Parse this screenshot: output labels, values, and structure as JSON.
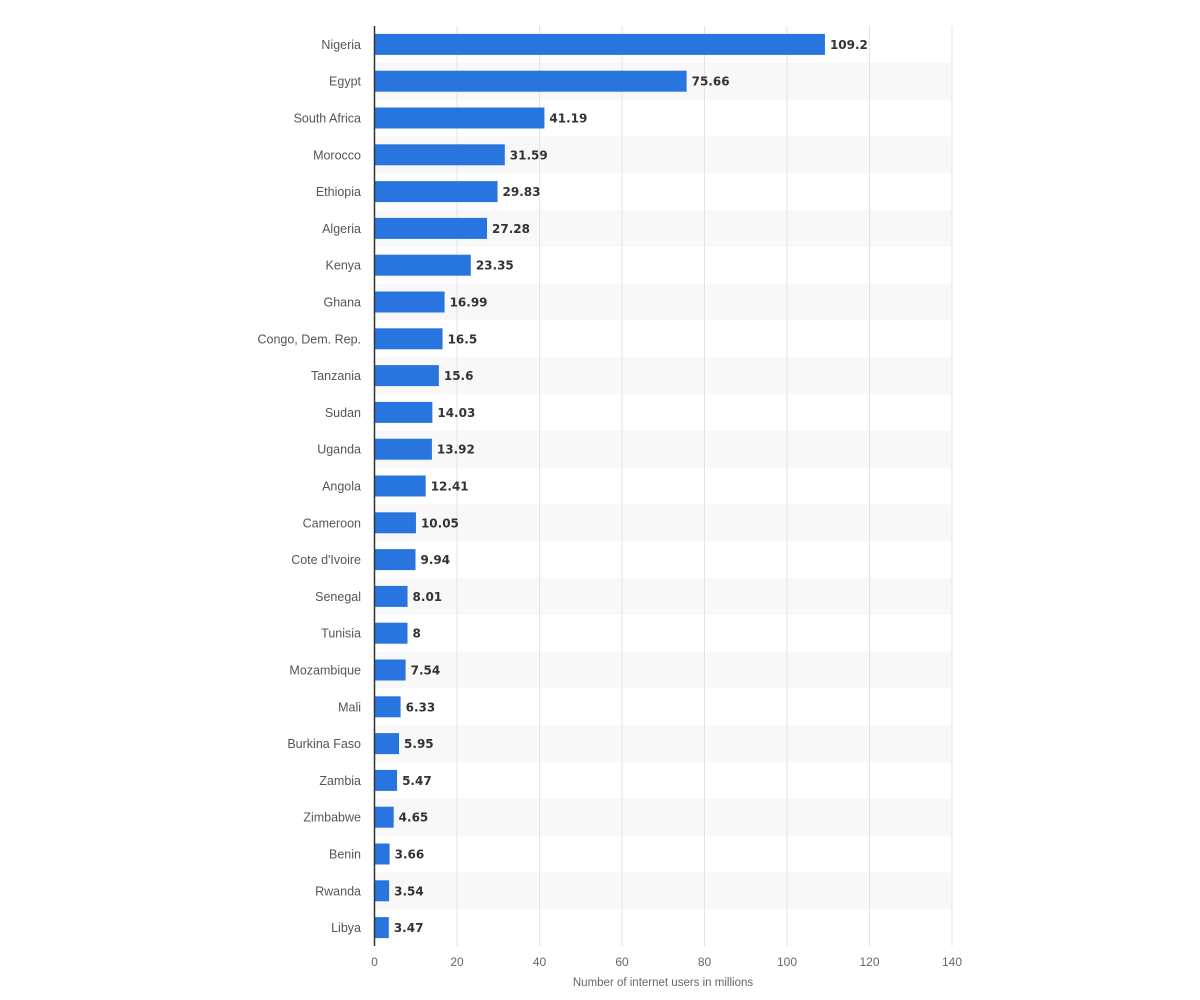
{
  "chart_data": {
    "type": "bar",
    "orientation": "horizontal",
    "categories": [
      "Nigeria",
      "Egypt",
      "South Africa",
      "Morocco",
      "Ethiopia",
      "Algeria",
      "Kenya",
      "Ghana",
      "Congo, Dem. Rep.",
      "Tanzania",
      "Sudan",
      "Uganda",
      "Angola",
      "Cameroon",
      "Cote d'Ivoire",
      "Senegal",
      "Tunisia",
      "Mozambique",
      "Mali",
      "Burkina Faso",
      "Zambia",
      "Zimbabwe",
      "Benin",
      "Rwanda",
      "Libya"
    ],
    "values": [
      109.2,
      75.66,
      41.19,
      31.59,
      29.83,
      27.28,
      23.35,
      16.99,
      16.5,
      15.6,
      14.03,
      13.92,
      12.41,
      10.05,
      9.94,
      8.01,
      8,
      7.54,
      6.33,
      5.95,
      5.47,
      4.65,
      3.66,
      3.54,
      3.47
    ],
    "value_labels": [
      "109.2",
      "75.66",
      "41.19",
      "31.59",
      "29.83",
      "27.28",
      "23.35",
      "16.99",
      "16.5",
      "15.6",
      "14.03",
      "13.92",
      "12.41",
      "10.05",
      "9.94",
      "8.01",
      "8",
      "7.54",
      "6.33",
      "5.95",
      "5.47",
      "4.65",
      "3.66",
      "3.54",
      "3.47"
    ],
    "xlabel": "Number of internet users in millions",
    "ylabel": "",
    "xlim": [
      0,
      140
    ],
    "xticks": [
      0,
      20,
      40,
      60,
      80,
      100,
      120,
      140
    ],
    "grid": true,
    "legend": "none",
    "bar_color": "#2875e0",
    "band_color": "#f8f8f8"
  }
}
